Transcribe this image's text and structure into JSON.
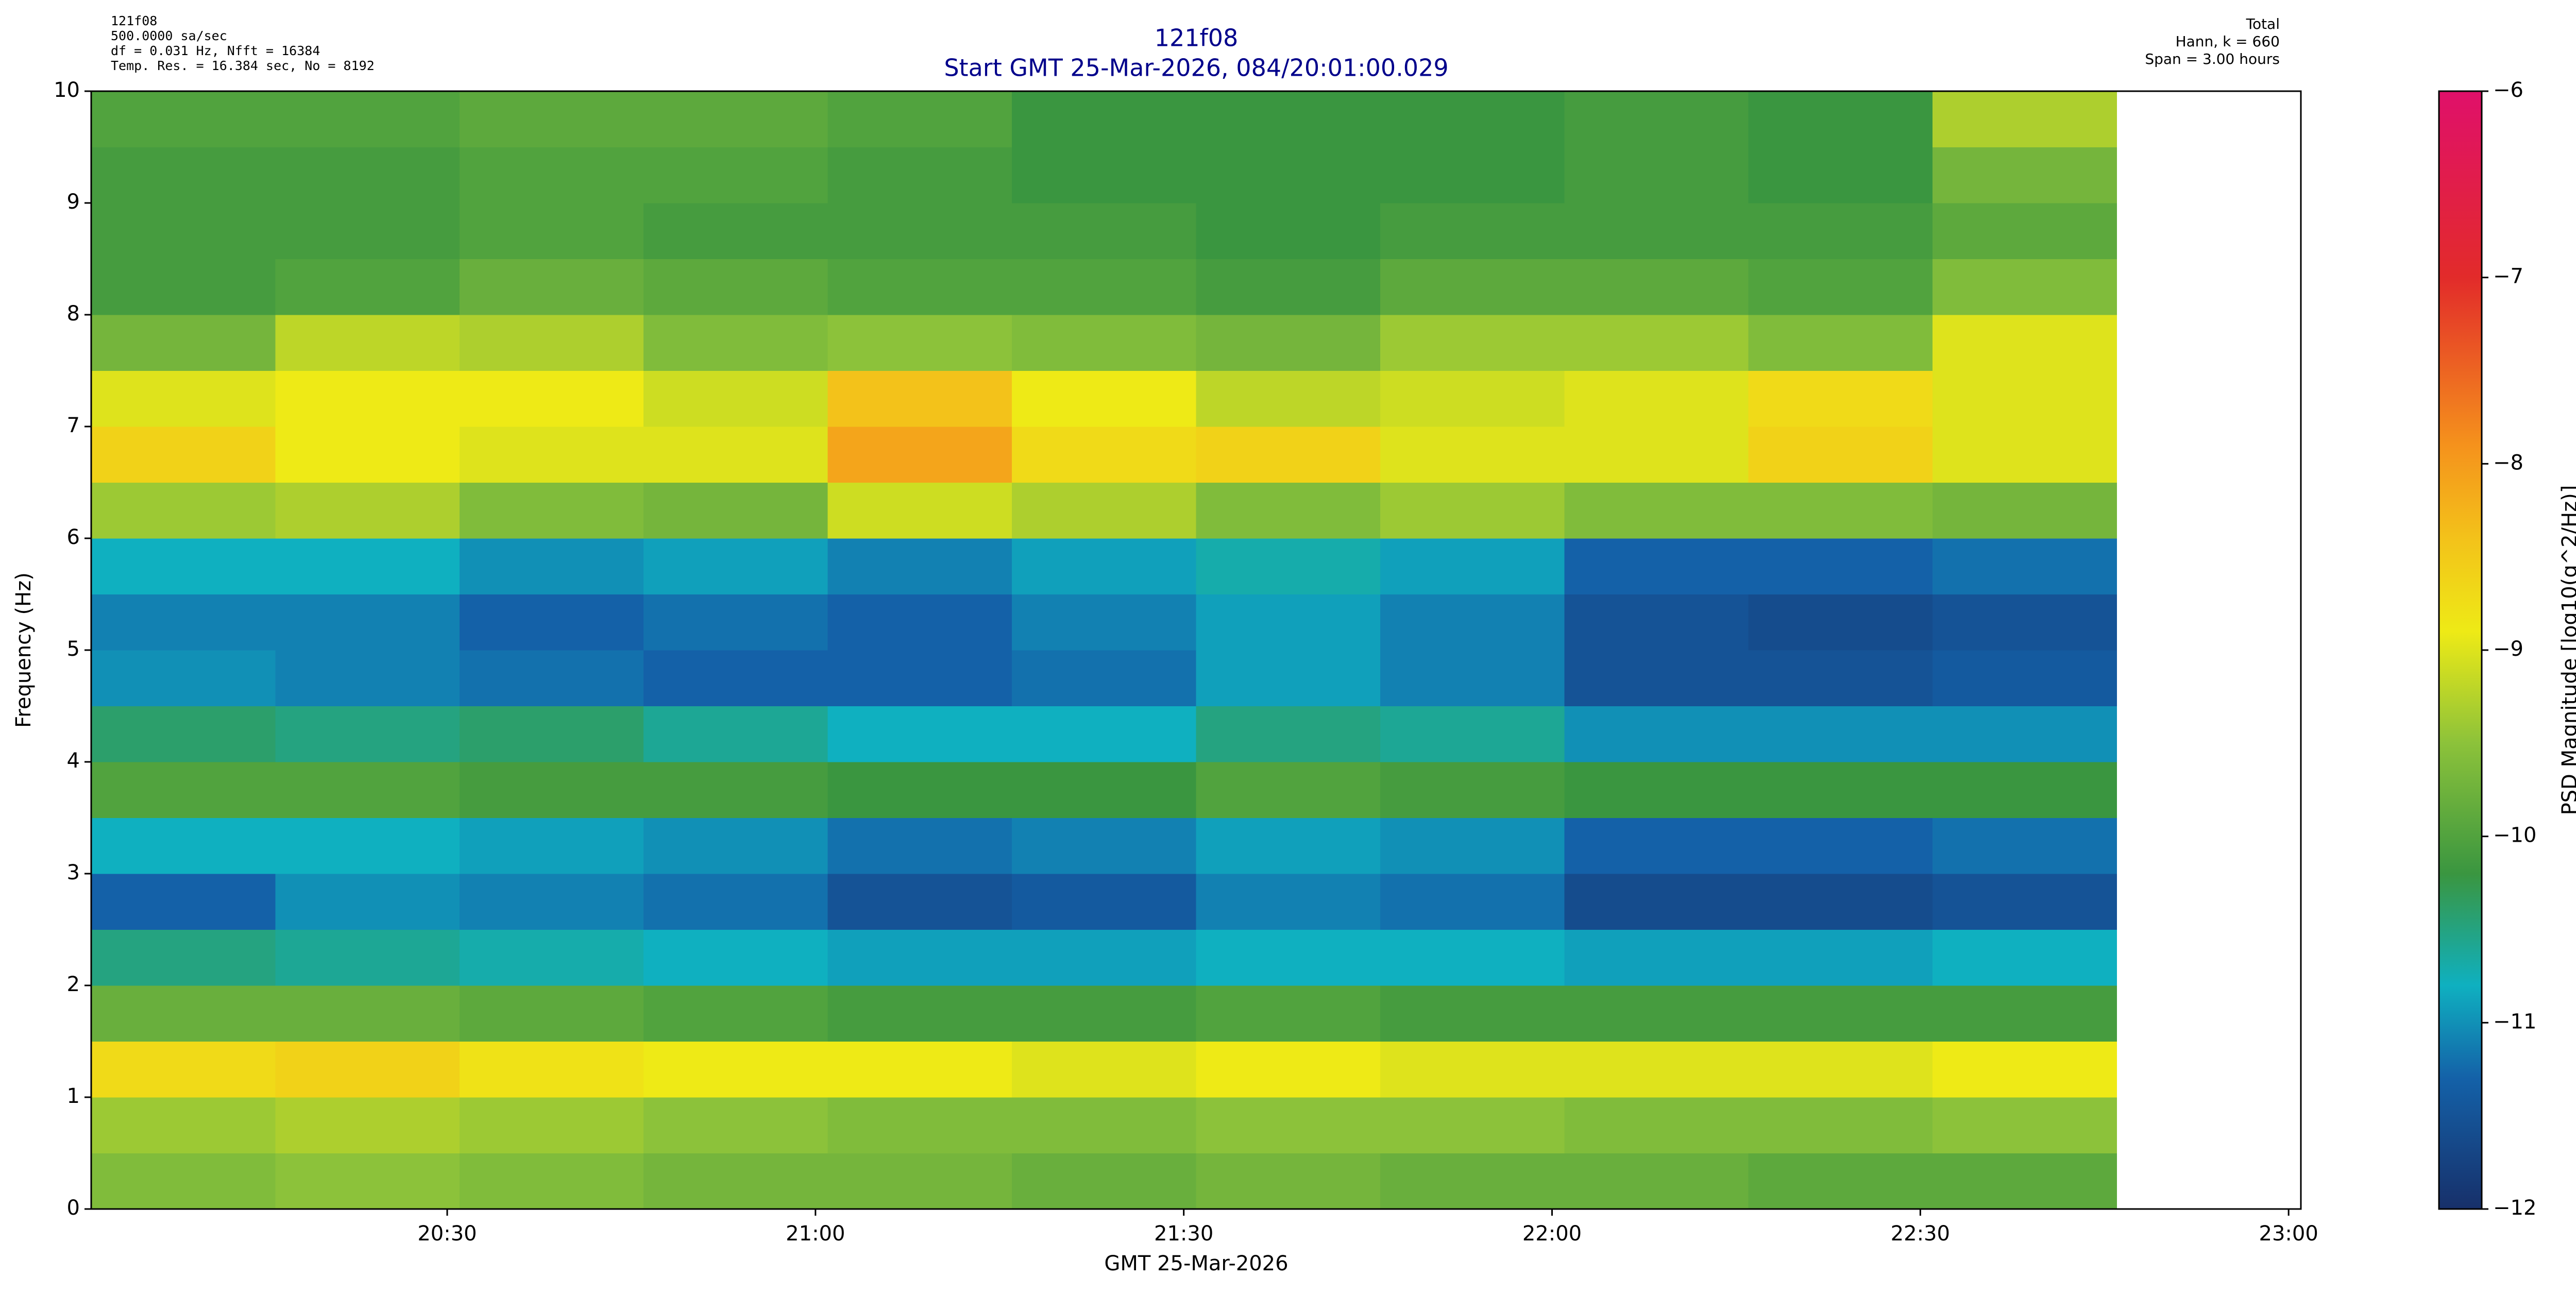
{
  "chart_data": {
    "type": "heatmap",
    "title": "121f08",
    "subtitle": "Start GMT 25-Mar-2026, 084/20:01:00.029",
    "header_left": [
      "121f08",
      "500.0000 sa/sec",
      "df = 0.031 Hz,  Nfft = 16384",
      "Temp. Res. = 16.384 sec, No = 8192"
    ],
    "header_right": [
      "Total",
      "Hann, k = 660",
      "Span = 3.00 hours"
    ],
    "x_label": "GMT 25-Mar-2026",
    "y_label": "Frequency (Hz)",
    "colorbar_label": "PSD Magnitude [log10(g^2/Hz)]",
    "xlim": [
      "20:01:00.029",
      "23:01:00.029"
    ],
    "xticks": [
      "20:30",
      "21:00",
      "21:30",
      "22:00",
      "22:30",
      "23:00"
    ],
    "ylim": [
      0,
      10
    ],
    "yticks": [
      0,
      1,
      2,
      3,
      4,
      5,
      6,
      7,
      8,
      9,
      10
    ],
    "zlim": [
      -12,
      -6
    ],
    "zticks": [
      {
        "value": -12,
        "label": "−12"
      },
      {
        "value": -11,
        "label": "−11"
      },
      {
        "value": -10,
        "label": "−10"
      },
      {
        "value": -9,
        "label": "−9"
      },
      {
        "value": -8,
        "label": "−8"
      },
      {
        "value": -7,
        "label": "−7"
      },
      {
        "value": -6,
        "label": "−6"
      }
    ],
    "colormap": [
      {
        "value": -12,
        "color": "#17306a"
      },
      {
        "value": -11.3,
        "color": "#1461a8"
      },
      {
        "value": -10.8,
        "color": "#0fb0c0"
      },
      {
        "value": -10.2,
        "color": "#3a9640"
      },
      {
        "value": -9.5,
        "color": "#8cc23a"
      },
      {
        "value": -8.9,
        "color": "#eeea16"
      },
      {
        "value": -8.4,
        "color": "#f3c21a"
      },
      {
        "value": -7.9,
        "color": "#f5921c"
      },
      {
        "value": -7,
        "color": "#e22b2a"
      },
      {
        "value": -6,
        "color": "#e0106a"
      }
    ],
    "xbins": [
      "20:01:00",
      "20:16:00",
      "20:31:00",
      "20:46:00",
      "21:01:00",
      "21:16:00",
      "21:31:00",
      "21:46:00",
      "22:01:00",
      "22:16:00",
      "22:31:00",
      "22:46:00"
    ],
    "ybins": [
      0,
      0.5,
      1,
      1.5,
      2,
      2.5,
      3,
      3.5,
      4,
      4.5,
      5,
      5.5,
      6,
      6.5,
      7,
      7.5,
      8,
      8.5,
      9,
      9.5,
      10
    ],
    "z": [
      [
        -9.6,
        -9.5,
        -9.6,
        -9.7,
        -9.7,
        -9.8,
        -9.7,
        -9.8,
        -9.8,
        -9.9,
        -9.9
      ],
      [
        -9.4,
        -9.3,
        -9.4,
        -9.5,
        -9.6,
        -9.6,
        -9.5,
        -9.5,
        -9.6,
        -9.6,
        -9.5
      ],
      [
        -8.7,
        -8.6,
        -8.8,
        -8.9,
        -8.9,
        -9.0,
        -8.9,
        -9.0,
        -9.0,
        -9.0,
        -8.9
      ],
      [
        -9.8,
        -9.8,
        -9.9,
        -10.0,
        -10.1,
        -10.1,
        -10.0,
        -10.1,
        -10.1,
        -10.1,
        -10.1
      ],
      [
        -10.5,
        -10.6,
        -10.7,
        -10.8,
        -10.9,
        -10.9,
        -10.8,
        -10.8,
        -10.9,
        -10.9,
        -10.8
      ],
      [
        -11.3,
        -11.0,
        -11.1,
        -11.2,
        -11.5,
        -11.4,
        -11.1,
        -11.2,
        -11.6,
        -11.6,
        -11.5
      ],
      [
        -10.8,
        -10.8,
        -10.9,
        -11.0,
        -11.2,
        -11.1,
        -10.9,
        -11.0,
        -11.3,
        -11.3,
        -11.2
      ],
      [
        -10.0,
        -10.0,
        -10.1,
        -10.1,
        -10.2,
        -10.2,
        -10.0,
        -10.1,
        -10.2,
        -10.2,
        -10.2
      ],
      [
        -10.4,
        -10.5,
        -10.4,
        -10.6,
        -10.8,
        -10.8,
        -10.5,
        -10.6,
        -11.0,
        -11.0,
        -11.0
      ],
      [
        -11.0,
        -11.1,
        -11.2,
        -11.3,
        -11.3,
        -11.2,
        -10.9,
        -11.1,
        -11.5,
        -11.5,
        -11.4
      ],
      [
        -11.1,
        -11.1,
        -11.3,
        -11.2,
        -11.3,
        -11.1,
        -10.9,
        -11.1,
        -11.5,
        -11.6,
        -11.5
      ],
      [
        -10.8,
        -10.8,
        -11.0,
        -10.9,
        -11.1,
        -10.9,
        -10.7,
        -10.9,
        -11.3,
        -11.3,
        -11.2
      ],
      [
        -9.4,
        -9.3,
        -9.6,
        -9.7,
        -9.1,
        -9.3,
        -9.6,
        -9.4,
        -9.6,
        -9.6,
        -9.7
      ],
      [
        -8.6,
        -8.9,
        -9.0,
        -9.0,
        -8.1,
        -8.7,
        -8.6,
        -9.0,
        -9.0,
        -8.6,
        -9.0
      ],
      [
        -9.0,
        -8.9,
        -8.9,
        -9.1,
        -8.4,
        -8.9,
        -9.2,
        -9.1,
        -9.0,
        -8.7,
        -9.0
      ],
      [
        -9.7,
        -9.2,
        -9.3,
        -9.6,
        -9.5,
        -9.6,
        -9.7,
        -9.4,
        -9.4,
        -9.6,
        -9.0
      ],
      [
        -10.1,
        -10.0,
        -9.8,
        -9.9,
        -10.0,
        -10.0,
        -10.1,
        -9.9,
        -9.9,
        -10.0,
        -9.6
      ],
      [
        -10.1,
        -10.1,
        -10.0,
        -10.1,
        -10.1,
        -10.1,
        -10.2,
        -10.1,
        -10.1,
        -10.1,
        -9.9
      ],
      [
        -10.1,
        -10.1,
        -10.0,
        -10.0,
        -10.1,
        -10.2,
        -10.2,
        -10.2,
        -10.1,
        -10.2,
        -9.7
      ],
      [
        -10.0,
        -10.0,
        -9.9,
        -9.9,
        -10.0,
        -10.2,
        -10.2,
        -10.2,
        -10.1,
        -10.2,
        -9.3
      ]
    ]
  }
}
